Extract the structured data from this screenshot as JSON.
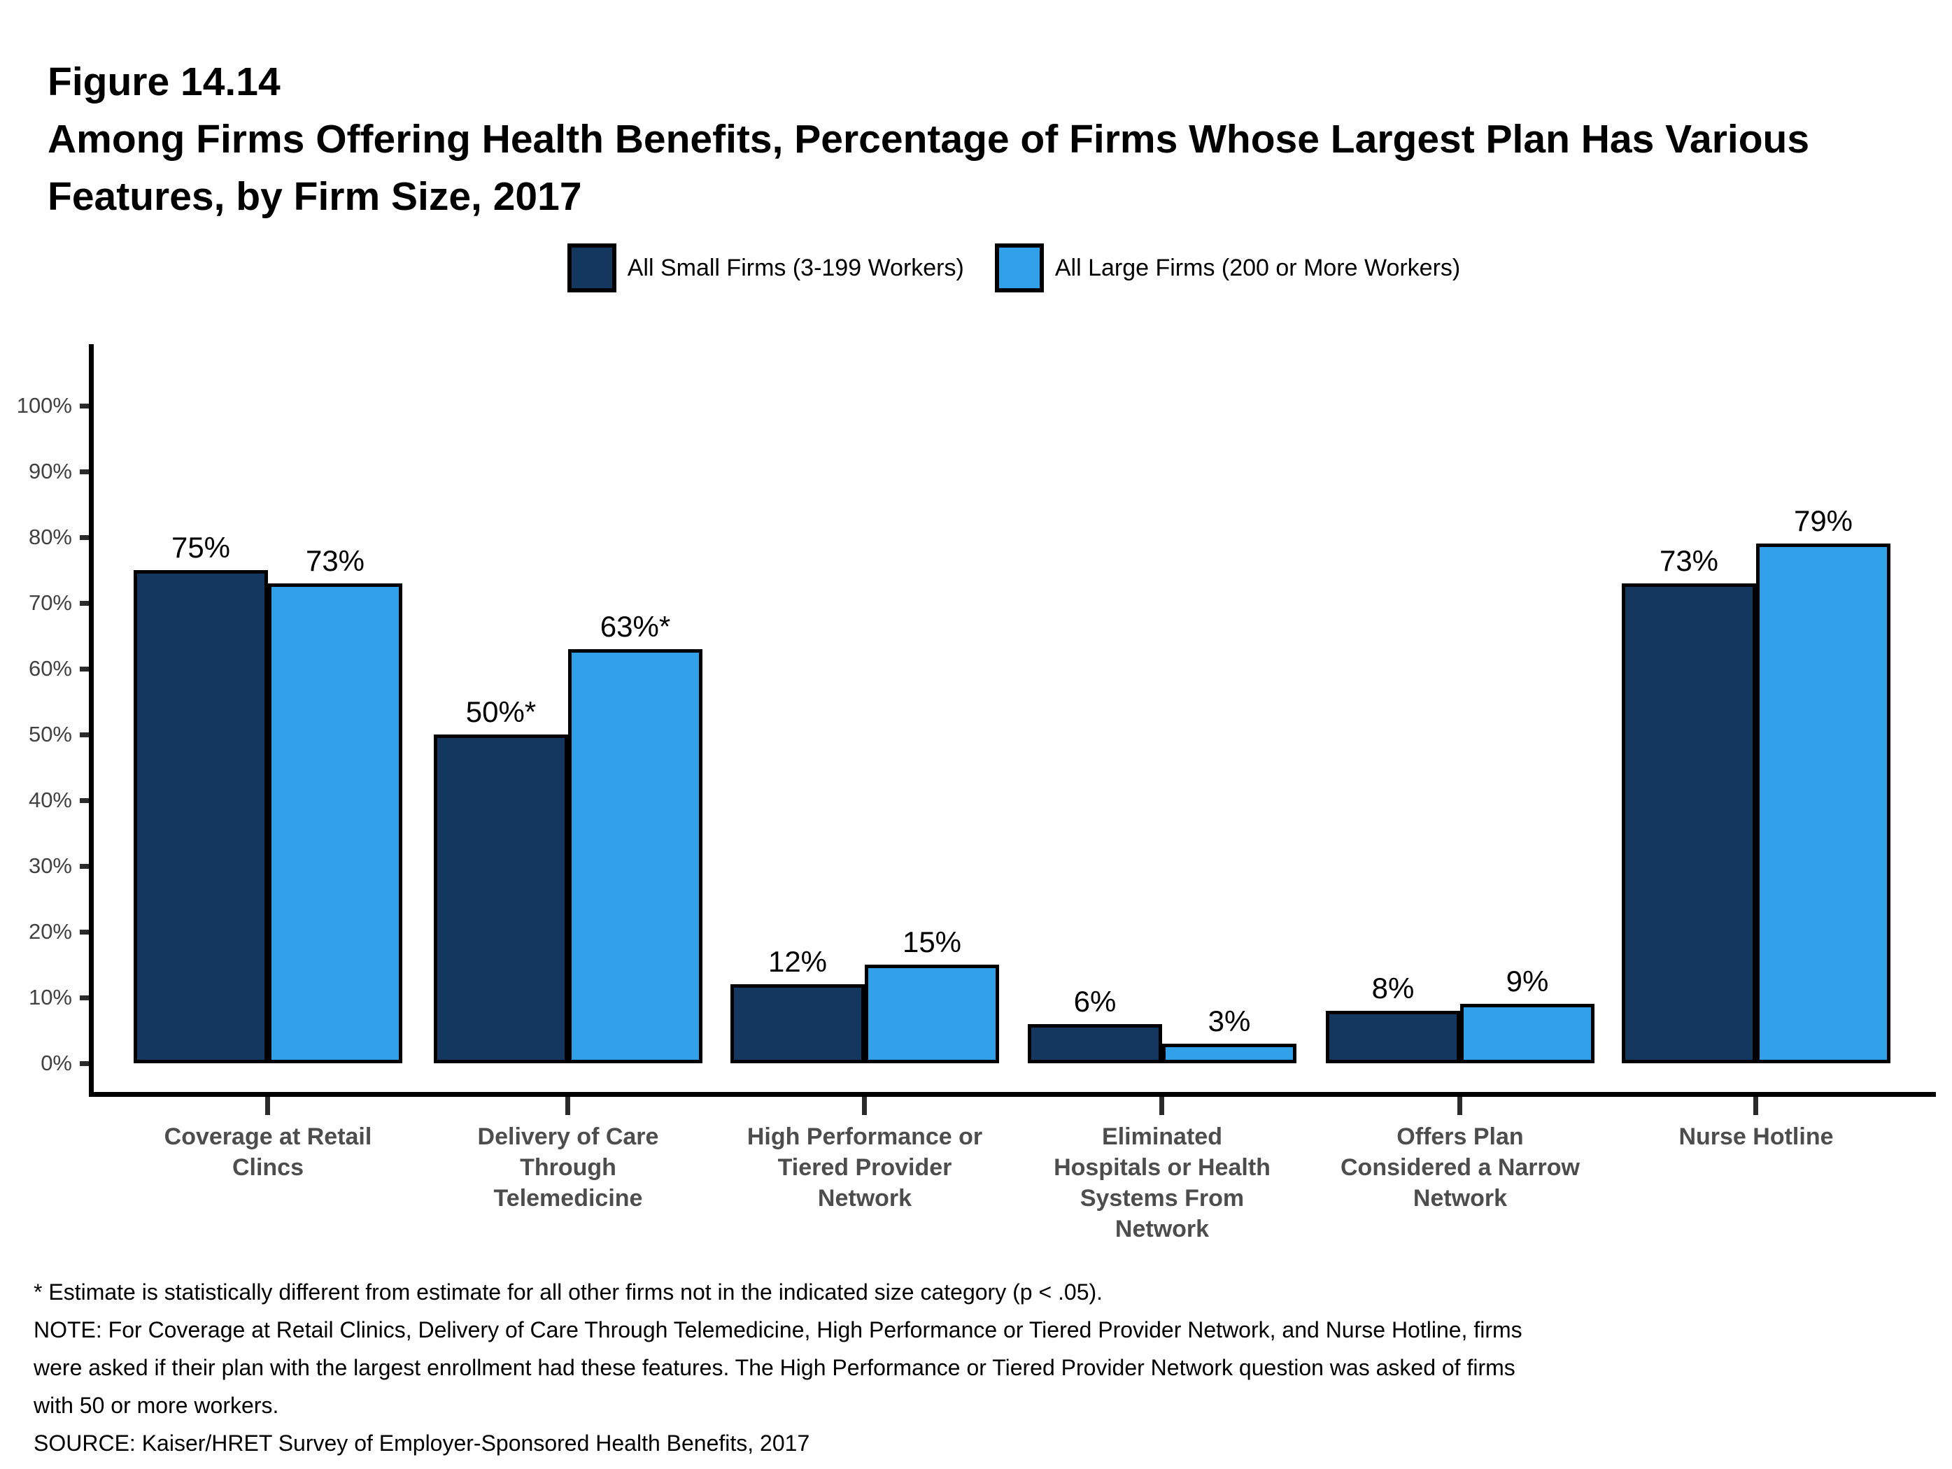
{
  "figure": {
    "label": "Figure 14.14",
    "title": "Among Firms Offering Health Benefits, Percentage of Firms Whose Largest Plan Has Various\nFeatures, by Firm Size, 2017"
  },
  "legend": [
    {
      "label": "All Small Firms (3-199 Workers)",
      "color": "#13375F"
    },
    {
      "label": "All Large Firms (200 or More Workers)",
      "color": "#30A1E8"
    }
  ],
  "chart_data": {
    "type": "bar",
    "title": "Among Firms Offering Health Benefits, Percentage of Firms Whose Largest Plan Has Various Features, by Firm Size, 2017",
    "categories": [
      {
        "label": "Coverage at Retail\nClincs"
      },
      {
        "label": "Delivery of Care\nThrough\nTelemedicine"
      },
      {
        "label": "High Performance or\nTiered Provider\nNetwork"
      },
      {
        "label": "Eliminated\nHospitals or Health\nSystems From\nNetwork"
      },
      {
        "label": "Offers Plan\nConsidered a Narrow\nNetwork"
      },
      {
        "label": "Nurse Hotline"
      }
    ],
    "series": [
      {
        "name": "All Small Firms (3-199 Workers)",
        "color": "#13375F",
        "values": [
          75,
          50,
          12,
          6,
          8,
          73
        ],
        "data_labels": [
          "75%",
          "50%*",
          "12%",
          "6%",
          "8%",
          "73%"
        ]
      },
      {
        "name": "All Large Firms (200 or More Workers)",
        "color": "#30A1E8",
        "values": [
          73,
          63,
          15,
          3,
          9,
          79
        ],
        "data_labels": [
          "73%",
          "63%*",
          "15%",
          "3%",
          "9%",
          "79%"
        ]
      }
    ],
    "xlabel": "",
    "ylabel": "",
    "ylim": [
      0,
      100
    ],
    "ytick_step": 10,
    "ytick_labels": [
      "0%",
      "10%",
      "20%",
      "30%",
      "40%",
      "50%",
      "60%",
      "70%",
      "80%",
      "90%",
      "100%"
    ],
    "grid": false,
    "legend_position": "top"
  },
  "footnotes": {
    "star": "* Estimate is statistically different from estimate for all other firms not in the indicated size category (p < .05).",
    "note": "NOTE: For Coverage at Retail Clinics, Delivery of Care Through Telemedicine, High Performance or Tiered Provider Network, and Nurse Hotline, firms\nwere asked if their plan with the largest enrollment had these features. The High Performance or Tiered Provider Network question was asked of firms\nwith 50 or more workers.",
    "source": "SOURCE: Kaiser/HRET Survey of Employer-Sponsored Health Benefits, 2017"
  }
}
